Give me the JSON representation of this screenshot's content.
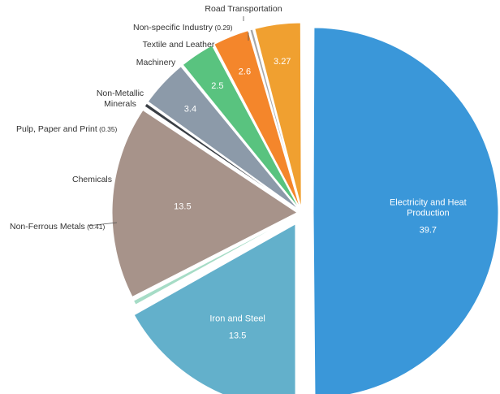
{
  "chart_data": {
    "type": "pie",
    "title": "",
    "slices": [
      {
        "label": "Electricity and Heat Production",
        "label_lines": [
          "Electricity and Heat",
          "Production"
        ],
        "value": 39.7,
        "value_label": "39.7",
        "color": "#3a97d9",
        "label_inside": true
      },
      {
        "label": "Iron and Steel",
        "label_lines": [
          "Iron and Steel"
        ],
        "value": 13.5,
        "value_label": "13.5",
        "color": "#63b0cb",
        "label_inside": true
      },
      {
        "label": "Non-Ferrous Metals",
        "label_lines": [
          "Non-Ferrous Metals"
        ],
        "value": 0.41,
        "value_label": "(0.41)",
        "color": "#a6dcc6",
        "label_inside": false
      },
      {
        "label": "Chemicals",
        "label_lines": [
          "Chemicals"
        ],
        "value": 13.5,
        "value_label": "13.5",
        "color": "#a7938a",
        "label_inside": true
      },
      {
        "label": "Pulp, Paper and Print",
        "label_lines": [
          "Pulp, Paper and Print"
        ],
        "value": 0.35,
        "value_label": "(0.35)",
        "color": "#3a3f45",
        "label_inside": false
      },
      {
        "label": "Non-Metallic Minerals",
        "label_lines": [
          "Non-Metallic",
          "Minerals"
        ],
        "value": 3.4,
        "value_label": "3.4",
        "color": "#8c9aa9",
        "label_inside": true
      },
      {
        "label": "Machinery",
        "label_lines": [
          "Machinery"
        ],
        "value": 2.5,
        "value_label": "2.5",
        "color": "#59c37f",
        "label_inside": true
      },
      {
        "label": "Textile and Leather",
        "label_lines": [
          "Textile and Leather"
        ],
        "value": 2.6,
        "value_label": "2.6",
        "color": "#f4862b",
        "label_inside": true
      },
      {
        "label": "Non-specific Industry",
        "label_lines": [
          "Non-specific Industry"
        ],
        "value": 0.29,
        "value_label": "(0.29)",
        "color": "#a7a7a7",
        "label_inside": false
      },
      {
        "label": "Road Transportation",
        "label_lines": [
          "Road Transportation"
        ],
        "value": 3.27,
        "value_label": "3.27",
        "color": "#f0a030",
        "label_inside": true
      }
    ]
  }
}
